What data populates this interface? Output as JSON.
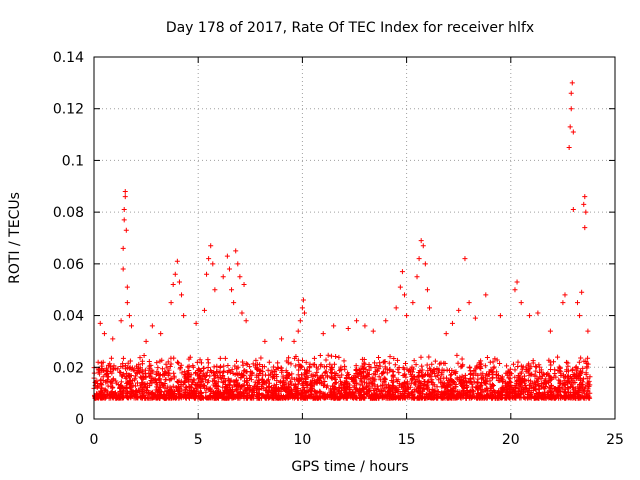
{
  "chart_data": {
    "type": "scatter",
    "title": "Day 178 of 2017, Rate Of TEC Index for receiver hlfx",
    "xlabel": "GPS time / hours",
    "ylabel": "ROTI / TECUs",
    "xlim": [
      0,
      25
    ],
    "ylim": [
      0,
      0.14
    ],
    "xticks": [
      0,
      5,
      10,
      15,
      20,
      25
    ],
    "xtick_labels": [
      "0",
      "5",
      "10",
      "15",
      "20",
      "25"
    ],
    "yticks": [
      0,
      0.02,
      0.04,
      0.06,
      0.08,
      0.1,
      0.12,
      0.14
    ],
    "ytick_labels": [
      "0",
      "0.02",
      "0.04",
      "0.06",
      "0.08",
      "0.1",
      "0.12",
      "0.14"
    ],
    "grid": true,
    "marker": "+",
    "series": [
      {
        "name": "ROTI",
        "color": "#ff0000",
        "x_range": [
          0,
          23.8
        ],
        "baseline_band": [
          0.005,
          0.025
        ],
        "points": [
          [
            0.3,
            0.037
          ],
          [
            0.5,
            0.033
          ],
          [
            0.9,
            0.031
          ],
          [
            1.3,
            0.038
          ],
          [
            1.4,
            0.058
          ],
          [
            1.4,
            0.066
          ],
          [
            1.45,
            0.077
          ],
          [
            1.45,
            0.081
          ],
          [
            1.5,
            0.086
          ],
          [
            1.5,
            0.088
          ],
          [
            1.55,
            0.073
          ],
          [
            1.6,
            0.051
          ],
          [
            1.6,
            0.045
          ],
          [
            1.7,
            0.04
          ],
          [
            1.8,
            0.036
          ],
          [
            2.5,
            0.03
          ],
          [
            2.8,
            0.036
          ],
          [
            3.2,
            0.033
          ],
          [
            3.7,
            0.045
          ],
          [
            3.8,
            0.052
          ],
          [
            3.9,
            0.056
          ],
          [
            4.0,
            0.061
          ],
          [
            4.1,
            0.053
          ],
          [
            4.2,
            0.048
          ],
          [
            4.3,
            0.04
          ],
          [
            4.9,
            0.037
          ],
          [
            5.3,
            0.042
          ],
          [
            5.4,
            0.056
          ],
          [
            5.5,
            0.062
          ],
          [
            5.6,
            0.067
          ],
          [
            5.7,
            0.06
          ],
          [
            5.8,
            0.05
          ],
          [
            6.2,
            0.055
          ],
          [
            6.4,
            0.063
          ],
          [
            6.5,
            0.058
          ],
          [
            6.6,
            0.05
          ],
          [
            6.7,
            0.045
          ],
          [
            6.8,
            0.065
          ],
          [
            6.9,
            0.06
          ],
          [
            7.0,
            0.055
          ],
          [
            7.1,
            0.041
          ],
          [
            7.2,
            0.052
          ],
          [
            7.3,
            0.038
          ],
          [
            8.2,
            0.03
          ],
          [
            9.0,
            0.031
          ],
          [
            9.6,
            0.03
          ],
          [
            9.8,
            0.034
          ],
          [
            9.9,
            0.038
          ],
          [
            10.0,
            0.043
          ],
          [
            10.05,
            0.046
          ],
          [
            10.1,
            0.041
          ],
          [
            11.0,
            0.033
          ],
          [
            11.5,
            0.036
          ],
          [
            12.2,
            0.035
          ],
          [
            12.6,
            0.038
          ],
          [
            13.0,
            0.036
          ],
          [
            13.4,
            0.034
          ],
          [
            14.0,
            0.038
          ],
          [
            14.5,
            0.043
          ],
          [
            14.7,
            0.051
          ],
          [
            14.8,
            0.057
          ],
          [
            14.9,
            0.048
          ],
          [
            15.0,
            0.04
          ],
          [
            15.3,
            0.045
          ],
          [
            15.5,
            0.055
          ],
          [
            15.6,
            0.062
          ],
          [
            15.7,
            0.069
          ],
          [
            15.8,
            0.067
          ],
          [
            15.9,
            0.06
          ],
          [
            16.0,
            0.05
          ],
          [
            16.1,
            0.043
          ],
          [
            16.9,
            0.033
          ],
          [
            17.2,
            0.037
          ],
          [
            17.5,
            0.042
          ],
          [
            17.8,
            0.062
          ],
          [
            18.0,
            0.045
          ],
          [
            18.3,
            0.039
          ],
          [
            18.8,
            0.048
          ],
          [
            19.5,
            0.04
          ],
          [
            20.2,
            0.05
          ],
          [
            20.3,
            0.053
          ],
          [
            20.5,
            0.045
          ],
          [
            20.9,
            0.04
          ],
          [
            21.3,
            0.041
          ],
          [
            21.9,
            0.034
          ],
          [
            22.5,
            0.045
          ],
          [
            22.6,
            0.048
          ],
          [
            22.8,
            0.105
          ],
          [
            22.85,
            0.113
          ],
          [
            22.9,
            0.12
          ],
          [
            22.9,
            0.126
          ],
          [
            22.95,
            0.13
          ],
          [
            23.0,
            0.111
          ],
          [
            23.0,
            0.081
          ],
          [
            23.2,
            0.045
          ],
          [
            23.3,
            0.04
          ],
          [
            23.4,
            0.049
          ],
          [
            23.5,
            0.083
          ],
          [
            23.55,
            0.086
          ],
          [
            23.55,
            0.074
          ],
          [
            23.6,
            0.08
          ],
          [
            23.7,
            0.034
          ]
        ]
      }
    ]
  }
}
